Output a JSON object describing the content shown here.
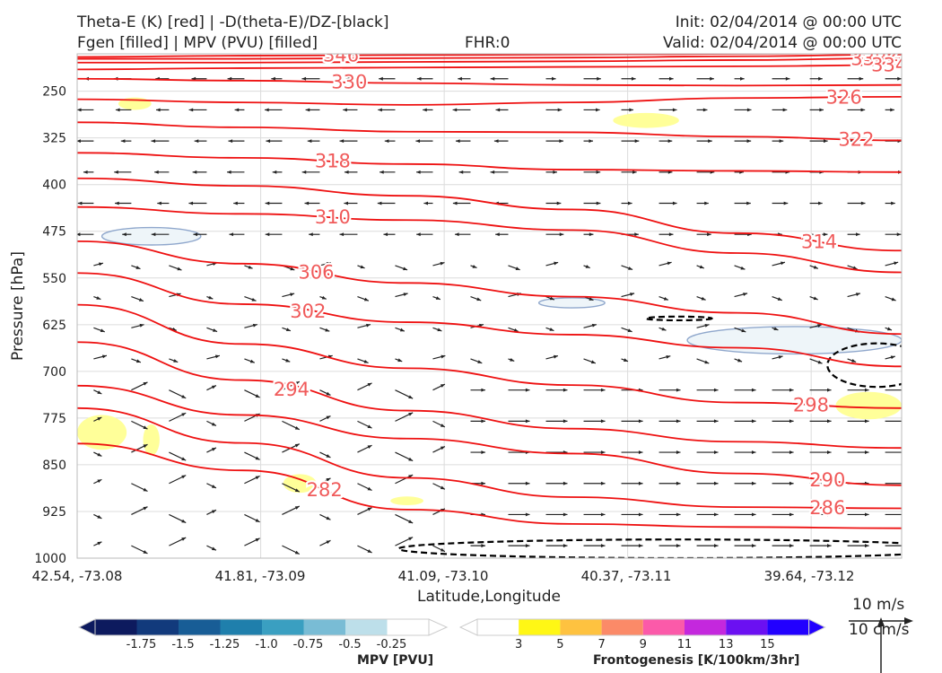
{
  "header": {
    "title_line1": "Theta-E (K) [red] | -D(theta-E)/DZ-[black]",
    "title_line2": "Fgen [filled] | MPV (PVU) [filled]",
    "fhr": "FHR:0",
    "init": "Init: 02/04/2014 @ 00:00 UTC",
    "valid": "Valid: 02/04/2014 @ 00:00 UTC"
  },
  "chart_data": {
    "type": "cross-section",
    "xlabel": "Latitude,Longitude",
    "ylabel": "Pressure [hPa]",
    "x_ticks": [
      "42.54, -73.08",
      "41.81, -73.09",
      "41.09, -73.10",
      "40.37, -73.11",
      "39.64, -73.12"
    ],
    "y_ticks": [
      250,
      325,
      400,
      475,
      550,
      625,
      700,
      775,
      850,
      925,
      1000
    ],
    "ylim": [
      1000,
      190
    ],
    "grid": true,
    "theta_e_contours": [
      {
        "label": "346",
        "level": 346,
        "points": [
          [
            0,
            195
          ],
          [
            0.2,
            193
          ],
          [
            0.4,
            192
          ],
          [
            0.6,
            191
          ],
          [
            0.8,
            190
          ],
          [
            1,
            189
          ]
        ]
      },
      {
        "label": "342",
        "level": 342,
        "points": [
          [
            0,
            198
          ],
          [
            0.2,
            198
          ],
          [
            0.4,
            197
          ],
          [
            0.6,
            196
          ],
          [
            0.8,
            194
          ],
          [
            1,
            191
          ]
        ]
      },
      {
        "label": "338",
        "level": 338,
        "points": [
          [
            0,
            204
          ],
          [
            0.2,
            204
          ],
          [
            0.4,
            203
          ],
          [
            0.6,
            202
          ],
          [
            0.8,
            200
          ],
          [
            1,
            197
          ]
        ]
      },
      {
        "label": "334",
        "level": 334,
        "points": [
          [
            0,
            215
          ],
          [
            0.2,
            213
          ],
          [
            0.4,
            212
          ],
          [
            0.6,
            211
          ],
          [
            0.8,
            210
          ],
          [
            1,
            208
          ]
        ]
      },
      {
        "label": "330",
        "level": 330,
        "points": [
          [
            0,
            230
          ],
          [
            0.2,
            233
          ],
          [
            0.4,
            237
          ],
          [
            0.6,
            240
          ],
          [
            0.8,
            241
          ],
          [
            1,
            240
          ]
        ]
      },
      {
        "label": "326",
        "level": 326,
        "points": [
          [
            0,
            263
          ],
          [
            0.2,
            268
          ],
          [
            0.4,
            272
          ],
          [
            0.6,
            268
          ],
          [
            0.8,
            261
          ],
          [
            1,
            259
          ]
        ]
      },
      {
        "label": "322",
        "level": 322,
        "points": [
          [
            0,
            300
          ],
          [
            0.2,
            308
          ],
          [
            0.4,
            315
          ],
          [
            0.6,
            316
          ],
          [
            0.8,
            323
          ],
          [
            1,
            329
          ]
        ]
      },
      {
        "label": "318",
        "level": 318,
        "points": [
          [
            0,
            349
          ],
          [
            0.2,
            357
          ],
          [
            0.4,
            367
          ],
          [
            0.6,
            376
          ],
          [
            0.8,
            378
          ],
          [
            1,
            380
          ]
        ]
      },
      {
        "label": "314",
        "level": 314,
        "points": [
          [
            0,
            390
          ],
          [
            0.2,
            402
          ],
          [
            0.4,
            418
          ],
          [
            0.6,
            440
          ],
          [
            0.8,
            478
          ],
          [
            1,
            506
          ]
        ]
      },
      {
        "label": "310",
        "level": 310,
        "points": [
          [
            0,
            436
          ],
          [
            0.2,
            447
          ],
          [
            0.4,
            457
          ],
          [
            0.6,
            473
          ],
          [
            0.8,
            510
          ],
          [
            1,
            541
          ]
        ]
      },
      {
        "label": "306",
        "level": 306,
        "points": [
          [
            0,
            491
          ],
          [
            0.2,
            527
          ],
          [
            0.4,
            558
          ],
          [
            0.6,
            580
          ],
          [
            0.8,
            606
          ],
          [
            1,
            640
          ]
        ]
      },
      {
        "label": "302",
        "level": 302,
        "points": [
          [
            0,
            542
          ],
          [
            0.2,
            592
          ],
          [
            0.4,
            621
          ],
          [
            0.6,
            641
          ],
          [
            0.8,
            662
          ],
          [
            1,
            692
          ]
        ]
      },
      {
        "label": "298",
        "level": 298,
        "points": [
          [
            0,
            593
          ],
          [
            0.2,
            656
          ],
          [
            0.4,
            695
          ],
          [
            0.6,
            722
          ],
          [
            0.8,
            750
          ],
          [
            1,
            759
          ]
        ]
      },
      {
        "label": "294",
        "level": 294,
        "points": [
          [
            0,
            653
          ],
          [
            0.2,
            714
          ],
          [
            0.4,
            763
          ],
          [
            0.6,
            792
          ],
          [
            0.8,
            813
          ],
          [
            1,
            823
          ]
        ]
      },
      {
        "label": "290",
        "level": 290,
        "points": [
          [
            0,
            723
          ],
          [
            0.2,
            770
          ],
          [
            0.4,
            808
          ],
          [
            0.6,
            832
          ],
          [
            0.8,
            864
          ],
          [
            1,
            883
          ]
        ]
      },
      {
        "label": "286",
        "level": 286,
        "points": [
          [
            0,
            759
          ],
          [
            0.2,
            815
          ],
          [
            0.4,
            871
          ],
          [
            0.6,
            902
          ],
          [
            0.8,
            918
          ],
          [
            1,
            920
          ]
        ]
      },
      {
        "label": "282",
        "level": 282,
        "points": [
          [
            0,
            816
          ],
          [
            0.2,
            859
          ],
          [
            0.4,
            922
          ],
          [
            0.6,
            945
          ],
          [
            0.8,
            950
          ],
          [
            1,
            952
          ]
        ]
      }
    ],
    "fgen_shaded": [
      {
        "x": 0.07,
        "p": 270,
        "rx": 0.02,
        "rp": 10
      },
      {
        "x": 0.69,
        "p": 297,
        "rx": 0.04,
        "rp": 12
      },
      {
        "x": 0.03,
        "p": 798,
        "rx": 0.03,
        "rp": 28
      },
      {
        "x": 0.09,
        "p": 810,
        "rx": 0.01,
        "rp": 25
      },
      {
        "x": 0.27,
        "p": 880,
        "rx": 0.02,
        "rp": 15
      },
      {
        "x": 0.4,
        "p": 908,
        "rx": 0.02,
        "rp": 7
      },
      {
        "x": 0.96,
        "p": 755,
        "rx": 0.04,
        "rp": 22
      }
    ],
    "mpv_shaded": [
      {
        "x": 0.09,
        "p": 483,
        "rx": 0.06,
        "rp": 14
      },
      {
        "x": 0.6,
        "p": 590,
        "rx": 0.04,
        "rp": 8
      },
      {
        "x": 0.87,
        "p": 650,
        "rx": 0.13,
        "rp": 22
      }
    ],
    "dthetae_dz_contours": [
      {
        "x": 0.73,
        "p": 615,
        "rx": 0.04,
        "rp": 3
      },
      {
        "x": 0.97,
        "p": 690,
        "rx": 0.06,
        "rp": 35
      },
      {
        "x": 0.73,
        "p": 985,
        "rx": 0.34,
        "rp": 15
      }
    ],
    "mpv_colorbar": {
      "title": "MPV [PVU]",
      "ticks": [
        "-1.75",
        "-1.5",
        "-1.25",
        "-1.0",
        "-0.75",
        "-0.5",
        "-0.25"
      ],
      "colors": [
        "#0d1a5e",
        "#123a7c",
        "#185d96",
        "#1f7fac",
        "#3a9fc1",
        "#79bcd5",
        "#bddfea",
        "#ffffff"
      ]
    },
    "fgen_colorbar": {
      "title": "Frontogenesis [K/100km/3hr]",
      "ticks": [
        "3",
        "5",
        "7",
        "9",
        "11",
        "13",
        "15"
      ],
      "colors": [
        "#ffffff",
        "#fff715",
        "#fec240",
        "#fb8a68",
        "#fb5aa9",
        "#c428dd",
        "#6b10f2",
        "#2200ff"
      ]
    },
    "wind_reference": {
      "label_top": "10 m/s",
      "label_bottom": "10 cm/s"
    }
  }
}
